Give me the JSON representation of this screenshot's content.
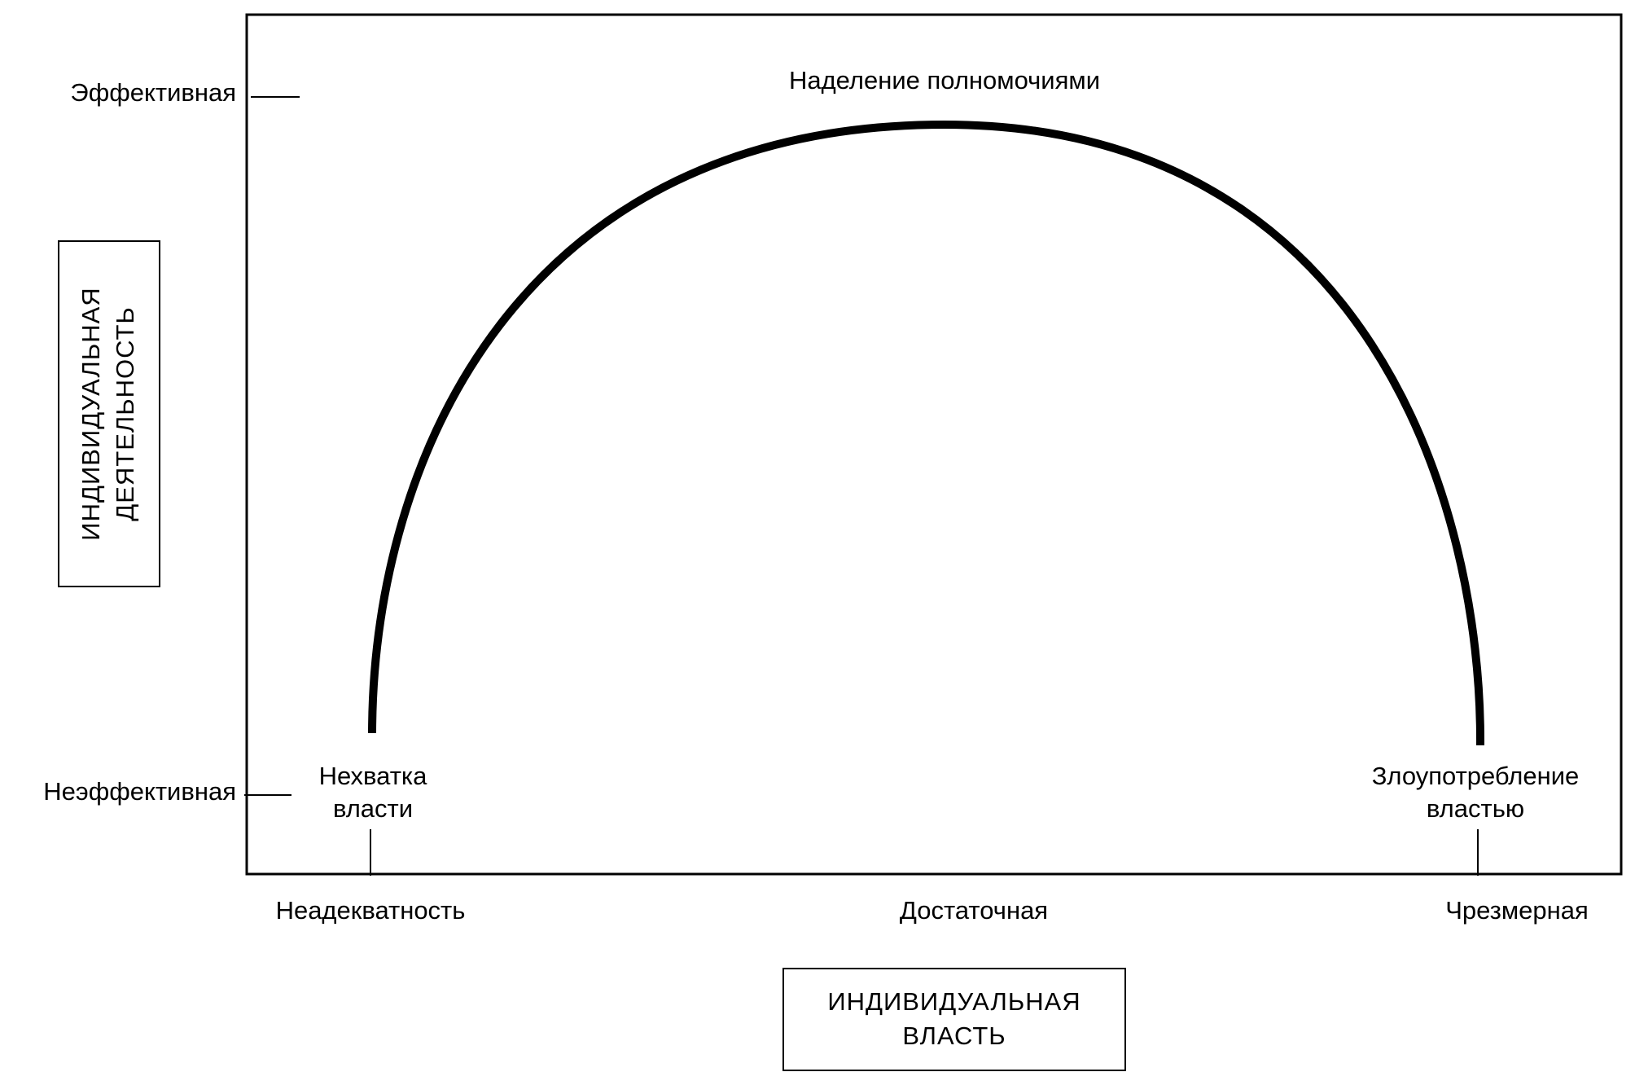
{
  "diagram": {
    "curve_label": "Наделение полномочиями",
    "y_axis": {
      "title_lines": [
        "ИНДИВИДУАЛЬНАЯ",
        "ДЕЯТЕЛЬНОСТЬ"
      ],
      "top_label": "Эффективная",
      "bottom_label": "Неэффективная"
    },
    "x_axis": {
      "title_lines": [
        "ИНДИВИДУАЛЬНАЯ",
        "ВЛАСТЬ"
      ],
      "left_label": "Неадекватность",
      "middle_label": "Достаточная",
      "right_label": "Чрезмерная"
    },
    "left_end_label_lines": [
      "Нехватка",
      "власти"
    ],
    "right_end_label_lines": [
      "Злоупотребление",
      "властью"
    ],
    "colors": {
      "ink": "#000000",
      "background": "#ffffff"
    }
  }
}
